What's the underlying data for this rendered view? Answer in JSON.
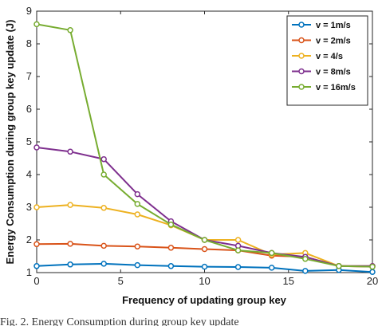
{
  "caption": "Fig. 2.   Energy Consumption during group key update",
  "chart_data": {
    "type": "line",
    "xlabel": "Frequency of updating group key",
    "ylabel": "Energy Consumption during group key update (J)",
    "xlim": [
      0,
      20
    ],
    "ylim": [
      1,
      9
    ],
    "xticks": [
      0,
      5,
      10,
      15,
      20
    ],
    "yticks": [
      1,
      2,
      3,
      4,
      5,
      6,
      7,
      8,
      9
    ],
    "grid": false,
    "legend_position": "top-right",
    "x": [
      0,
      2,
      4,
      6,
      8,
      10,
      12,
      14,
      16,
      18,
      20
    ],
    "series": [
      {
        "name": "v = 1m/s",
        "color": "#0072BD",
        "values": [
          1.2,
          1.25,
          1.27,
          1.23,
          1.2,
          1.18,
          1.17,
          1.15,
          1.05,
          1.08,
          1.02
        ]
      },
      {
        "name": "v = 2m/s",
        "color": "#D95319",
        "values": [
          1.87,
          1.88,
          1.82,
          1.8,
          1.76,
          1.72,
          1.68,
          1.52,
          1.48,
          1.2,
          1.18
        ]
      },
      {
        "name": "v = 4/s",
        "color": "#EDB120",
        "values": [
          3.0,
          3.07,
          2.98,
          2.78,
          2.45,
          2.0,
          2.0,
          1.55,
          1.6,
          1.2,
          1.2
        ]
      },
      {
        "name": "v = 8m/s",
        "color": "#7E2F8E",
        "values": [
          4.83,
          4.7,
          4.47,
          3.4,
          2.57,
          2.0,
          1.82,
          1.6,
          1.48,
          1.2,
          1.2
        ]
      },
      {
        "name": "v = 16m/s",
        "color": "#77AC30",
        "values": [
          8.6,
          8.42,
          4.0,
          3.1,
          2.47,
          2.0,
          1.68,
          1.6,
          1.42,
          1.2,
          1.18
        ]
      }
    ]
  }
}
